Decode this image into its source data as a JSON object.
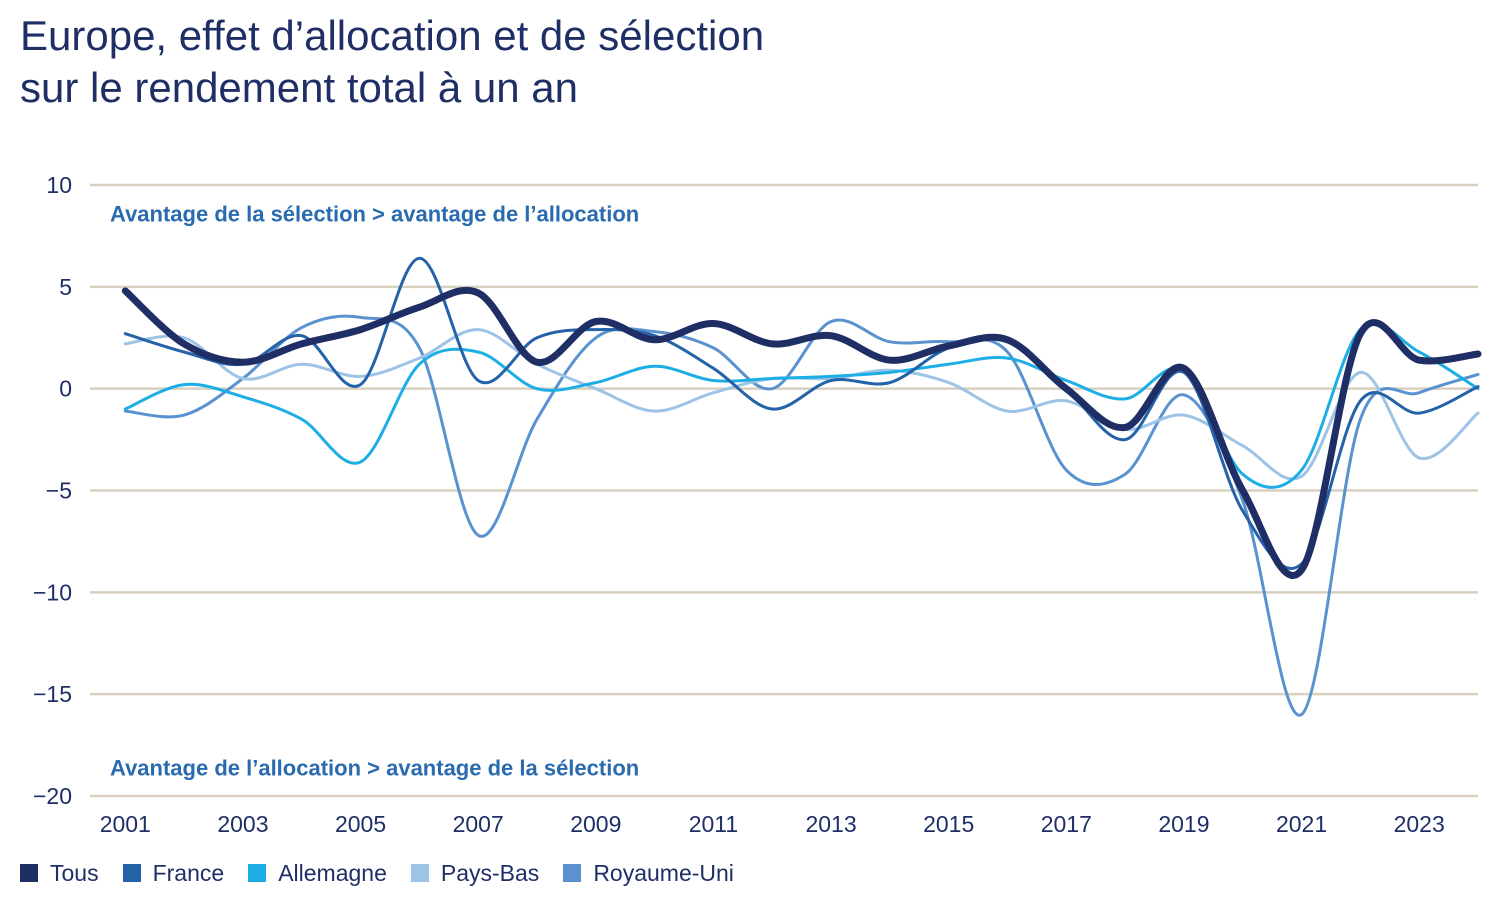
{
  "title_line1": "Europe, effet d’allocation et de sélection",
  "title_line2": "sur le rendement total à un an",
  "colors": {
    "text": "#1f2f66",
    "annotation": "#2a6bb0",
    "grid": "#d8d1bf",
    "tick": "#1f2f66"
  },
  "chart_data": {
    "type": "line",
    "title": "Europe, effet d’allocation et de sélection sur le rendement total à un an",
    "xlabel": "",
    "ylabel": "",
    "xlim": [
      2000.4,
      2024.0
    ],
    "ylim": [
      -20,
      10
    ],
    "yticks": [
      10,
      5,
      0,
      -5,
      -10,
      -15,
      -20
    ],
    "ytick_labels": [
      "10",
      "5",
      "0",
      "−5",
      "−10",
      "−15",
      "−20"
    ],
    "xticks": [
      2001,
      2003,
      2005,
      2007,
      2009,
      2011,
      2013,
      2015,
      2017,
      2019,
      2021,
      2023
    ],
    "xtick_labels": [
      "2001",
      "2003",
      "2005",
      "2007",
      "2009",
      "2011",
      "2013",
      "2015",
      "2017",
      "2019",
      "2021",
      "2023"
    ],
    "grid": true,
    "legend_position": "bottom-left",
    "annotations": [
      {
        "text": "Avantage de la sélection > avantage de l’allocation",
        "x": 2001,
        "y": 8.6
      },
      {
        "text": "Avantage de l’allocation > avantage de la sélection",
        "x": 2001,
        "y": -18.6
      }
    ],
    "series": [
      {
        "name": "Royaume-Uni",
        "color": "#5a92cf",
        "width": 3,
        "x": [
          2001,
          2002,
          2003,
          2004,
          2005,
          2006,
          2007,
          2008,
          2009,
          2010,
          2011,
          2012,
          2013,
          2014,
          2015,
          2016,
          2017,
          2018,
          2019,
          2020,
          2021,
          2022,
          2023,
          2024
        ],
        "y": [
          -1.1,
          -1.3,
          0.5,
          3.0,
          3.5,
          2.0,
          -7.2,
          -1.5,
          2.5,
          2.8,
          2.0,
          0.0,
          3.3,
          2.3,
          2.3,
          1.8,
          -4.0,
          -4.2,
          -0.3,
          -5.5,
          -16.0,
          -1.5,
          -0.2,
          0.7
        ]
      },
      {
        "name": "Pays-Bas",
        "color": "#9dc3e6",
        "width": 3,
        "x": [
          2001,
          2002,
          2003,
          2004,
          2005,
          2006,
          2007,
          2008,
          2009,
          2010,
          2011,
          2012,
          2013,
          2014,
          2015,
          2016,
          2017,
          2018,
          2019,
          2020,
          2021,
          2022,
          2023,
          2024
        ],
        "y": [
          2.2,
          2.5,
          0.5,
          1.2,
          0.6,
          1.5,
          2.9,
          1.2,
          0.0,
          -1.1,
          -0.2,
          0.5,
          0.5,
          0.9,
          0.3,
          -1.1,
          -0.6,
          -2.0,
          -1.3,
          -2.8,
          -4.3,
          0.8,
          -3.4,
          -1.2
        ]
      },
      {
        "name": "Allemagne",
        "color": "#1daee6",
        "width": 3,
        "x": [
          2001,
          2002,
          2003,
          2004,
          2005,
          2006,
          2007,
          2008,
          2009,
          2010,
          2011,
          2012,
          2013,
          2014,
          2015,
          2016,
          2017,
          2018,
          2019,
          2020,
          2021,
          2022,
          2023,
          2024
        ],
        "y": [
          -1.0,
          0.2,
          -0.4,
          -1.5,
          -3.6,
          1.2,
          1.8,
          0.0,
          0.3,
          1.1,
          0.4,
          0.5,
          0.6,
          0.8,
          1.2,
          1.5,
          0.4,
          -0.5,
          0.9,
          -4.2,
          -4.0,
          2.9,
          1.8,
          0.0
        ]
      },
      {
        "name": "France",
        "color": "#2563a8",
        "width": 3,
        "x": [
          2001,
          2002,
          2003,
          2004,
          2005,
          2006,
          2007,
          2008,
          2009,
          2010,
          2011,
          2012,
          2013,
          2014,
          2015,
          2016,
          2017,
          2018,
          2019,
          2020,
          2021,
          2022,
          2023,
          2024
        ],
        "y": [
          2.7,
          1.8,
          1.2,
          2.6,
          0.2,
          6.4,
          0.4,
          2.5,
          2.9,
          2.6,
          1.0,
          -1.0,
          0.4,
          0.3,
          2.0,
          2.3,
          0.0,
          -2.5,
          0.8,
          -6.0,
          -8.6,
          -0.6,
          -1.2,
          0.1
        ]
      },
      {
        "name": "Tous",
        "color": "#1f2f66",
        "width": 7,
        "x": [
          2001,
          2002,
          2003,
          2004,
          2005,
          2006,
          2007,
          2008,
          2009,
          2010,
          2011,
          2012,
          2013,
          2014,
          2015,
          2016,
          2017,
          2018,
          2019,
          2020,
          2021,
          2022,
          2023,
          2024
        ],
        "y": [
          4.8,
          2.2,
          1.3,
          2.2,
          2.9,
          4.0,
          4.7,
          1.3,
          3.3,
          2.4,
          3.2,
          2.2,
          2.6,
          1.4,
          2.1,
          2.4,
          0.0,
          -1.9,
          1.0,
          -5.0,
          -8.9,
          2.7,
          1.4,
          1.7
        ]
      }
    ]
  },
  "legend": [
    {
      "label": "Tous",
      "color": "#1f2f66"
    },
    {
      "label": "France",
      "color": "#2563a8"
    },
    {
      "label": "Allemagne",
      "color": "#1daee6"
    },
    {
      "label": "Pays-Bas",
      "color": "#9dc3e6"
    },
    {
      "label": "Royaume-Uni",
      "color": "#5a92cf"
    }
  ]
}
